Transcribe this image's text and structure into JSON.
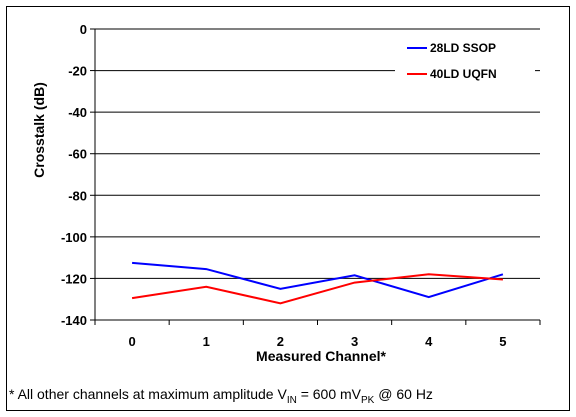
{
  "chart_data": {
    "type": "line",
    "xlabel": "Measured Channel*",
    "ylabel": "Crosstalk (dB)",
    "x": [
      0,
      1,
      2,
      3,
      4,
      5
    ],
    "xlim": [
      -0.5,
      5.5
    ],
    "ylim": [
      -140,
      0
    ],
    "yticks": [
      0,
      -20,
      -40,
      -60,
      -80,
      -100,
      -120,
      -140
    ],
    "grid": "horizontal",
    "legend_position": "top-right",
    "series": [
      {
        "name": "28LD SSOP",
        "color": "#0000ff",
        "values": [
          -112.5,
          -115.5,
          -125,
          -118.5,
          -129,
          -118
        ]
      },
      {
        "name": "40LD UQFN",
        "color": "#ff0000",
        "values": [
          -129.5,
          -124,
          -132,
          -122,
          -118,
          -120.5
        ]
      }
    ]
  },
  "footnote": {
    "prefix": "* All other channels at maximum amplitude V",
    "sub1": "IN",
    "middle": " = 600 mV",
    "sub2": "PK",
    "suffix": " @ 60 Hz"
  }
}
